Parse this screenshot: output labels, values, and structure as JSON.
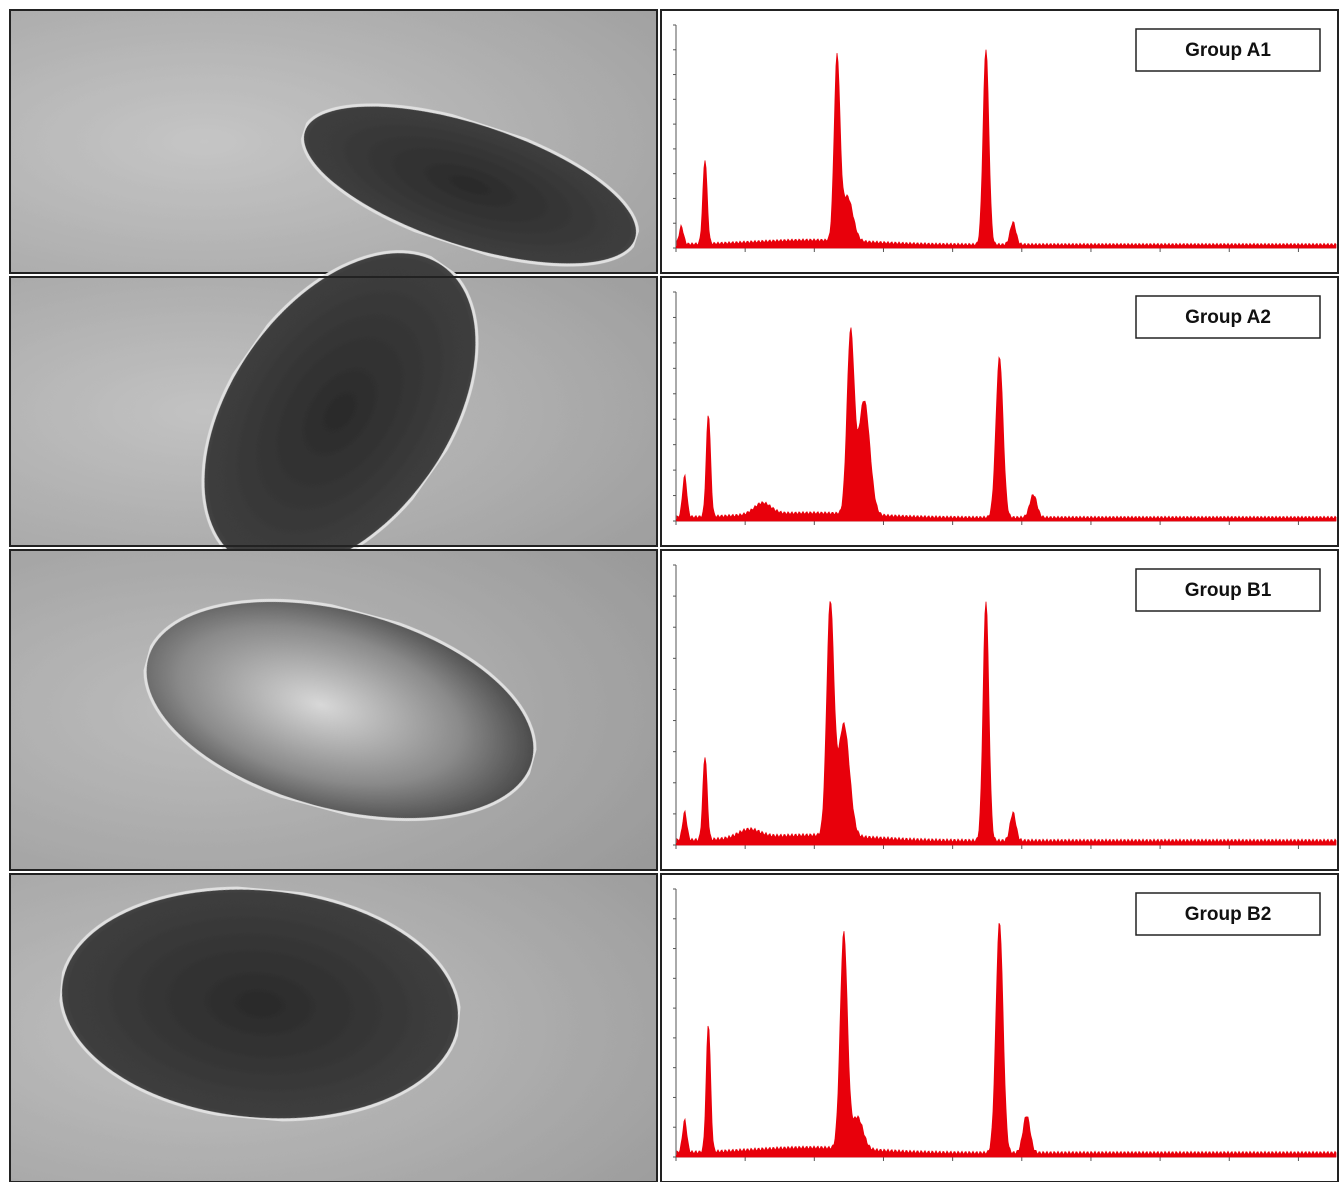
{
  "panels": [
    {
      "label": "Group A1"
    },
    {
      "label": "Group A2"
    },
    {
      "label": "Group B1"
    },
    {
      "label": "Group B2"
    }
  ]
}
